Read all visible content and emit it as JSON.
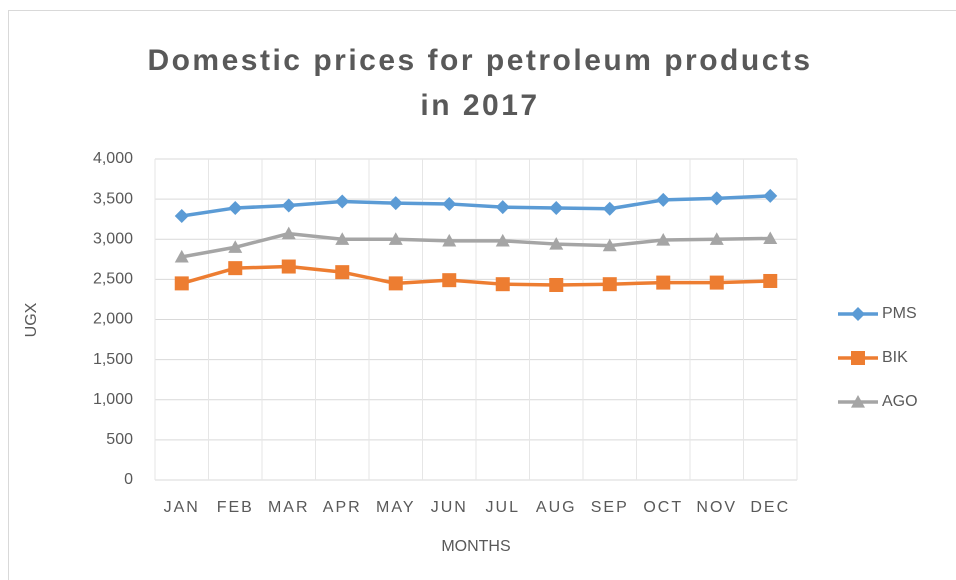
{
  "chart_data": {
    "type": "line",
    "title": "Domestic prices for petroleum products in 2017",
    "x_label": "MONTHS",
    "y_label": "UGX",
    "categories": [
      "JAN",
      "FEB",
      "MAR",
      "APR",
      "MAY",
      "JUN",
      "JUL",
      "AUG",
      "SEP",
      "OCT",
      "NOV",
      "DEC"
    ],
    "series": [
      {
        "name": "PMS",
        "color": "#5b9bd5",
        "marker": "diamond",
        "values": [
          3290,
          3390,
          3420,
          3470,
          3450,
          3440,
          3400,
          3390,
          3380,
          3490,
          3510,
          3540
        ]
      },
      {
        "name": "BIK",
        "color": "#ed7d31",
        "marker": "square",
        "values": [
          2450,
          2640,
          2660,
          2590,
          2450,
          2490,
          2440,
          2430,
          2440,
          2460,
          2460,
          2480
        ]
      },
      {
        "name": "AGO",
        "color": "#a5a5a5",
        "marker": "triangle",
        "values": [
          2780,
          2900,
          3070,
          3000,
          3000,
          2980,
          2980,
          2940,
          2920,
          2990,
          3000,
          3010
        ]
      }
    ],
    "ylim": [
      0,
      4000
    ],
    "yticks": [
      0,
      500,
      {
        "value": 1000,
        "label": "1,000"
      },
      {
        "value": 1500,
        "label": "1,500"
      },
      {
        "value": 2000,
        "label": "2,000"
      },
      {
        "value": 2500,
        "label": "2,500"
      },
      {
        "value": 3000,
        "label": "3,000"
      },
      {
        "value": 3500,
        "label": "3,500"
      },
      {
        "value": 4000,
        "label": "4,000"
      }
    ],
    "grid": true,
    "legend": "right"
  }
}
